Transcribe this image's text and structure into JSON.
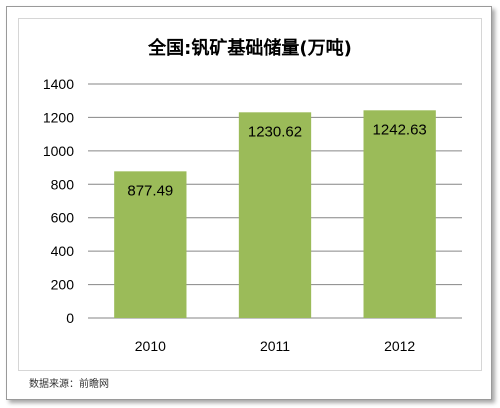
{
  "chart_data": {
    "type": "bar",
    "title": "全国:钒矿基础储量(万吨)",
    "categories": [
      "2010",
      "2011",
      "2012"
    ],
    "values": [
      877.49,
      1230.62,
      1242.63
    ],
    "data_labels": [
      "877.49",
      "1230.62",
      "1242.63"
    ],
    "ylim": [
      0,
      1400
    ],
    "yticks": [
      "0",
      "200",
      "400",
      "600",
      "800",
      "1000",
      "1200",
      "1400"
    ],
    "xlabel": "",
    "ylabel": "",
    "grid": true,
    "legend": "none",
    "bar_color": "#9bbb59"
  },
  "source_note": "数据来源：前瞻网"
}
